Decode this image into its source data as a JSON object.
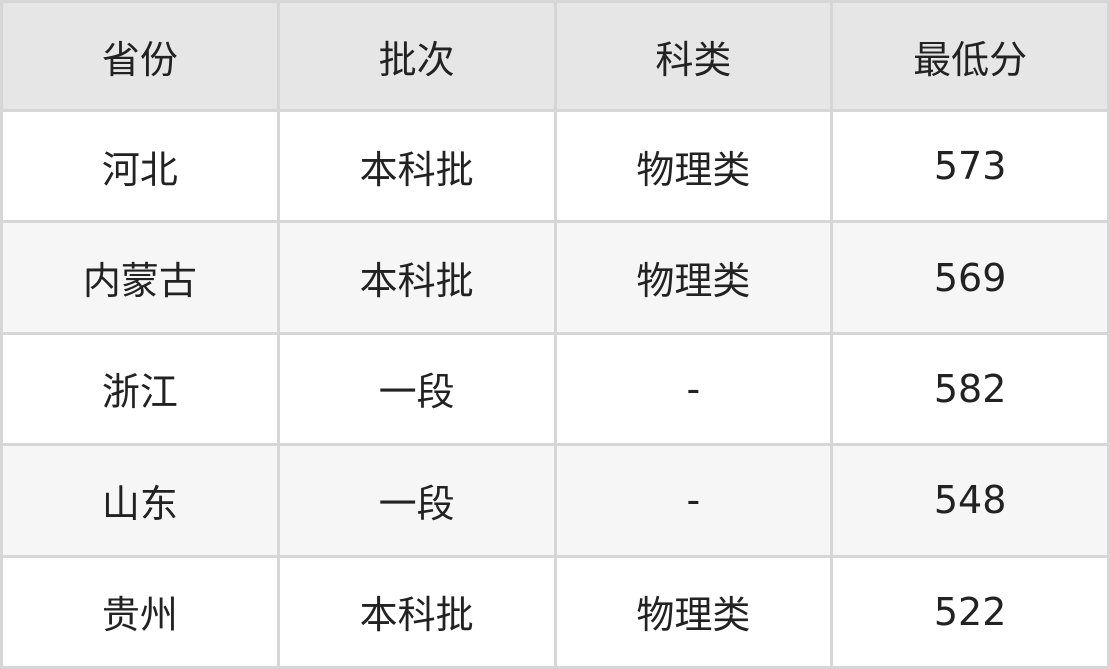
{
  "table": {
    "headers": [
      "省份",
      "批次",
      "科类",
      "最低分"
    ],
    "rows": [
      [
        "河北",
        "本科批",
        "物理类",
        "573"
      ],
      [
        "内蒙古",
        "本科批",
        "物理类",
        "569"
      ],
      [
        "浙江",
        "一段",
        "-",
        "582"
      ],
      [
        "山东",
        "一段",
        "-",
        "548"
      ],
      [
        "贵州",
        "本科批",
        "物理类",
        "522"
      ]
    ]
  },
  "colors": {
    "header_bg": "#e6e6e6",
    "alt_row_bg": "#f6f6f6",
    "border": "#d6d6d6"
  }
}
